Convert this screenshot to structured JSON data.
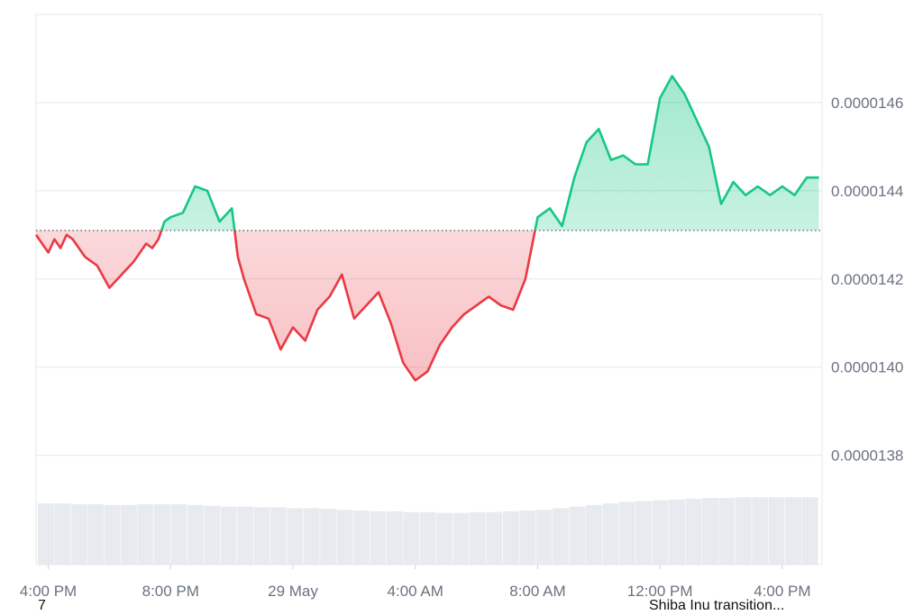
{
  "chart_data": {
    "type": "area",
    "title": "",
    "xlabel": "",
    "ylabel": "",
    "x_ticks": [
      "4:00 PM",
      "8:00 PM",
      "29 May",
      "4:00 AM",
      "8:00 AM",
      "12:00 PM",
      "4:00 PM"
    ],
    "y_ticks": [
      "0.0000146",
      "0.0000144",
      "0.0000142",
      "0.0000140",
      "0.0000138"
    ],
    "ylim": [
      1.374e-05,
      1.48e-05
    ],
    "baseline": 1.431e-05,
    "x_range_hours": [
      -0.4,
      25.3
    ],
    "grid": true,
    "colors": {
      "up": "#16c784",
      "down": "#ea3943",
      "grid": "#e5e7eb",
      "volume": "#e7eaee"
    },
    "series": [
      {
        "x": [
          -0.4,
          -0.2,
          0.0,
          0.2,
          0.4,
          0.6,
          0.8,
          1.0,
          1.2,
          1.6,
          2.0,
          2.4,
          2.8,
          3.2,
          3.4,
          3.6,
          3.8,
          4.0,
          4.4,
          4.8,
          5.2,
          5.6,
          6.0,
          6.2,
          6.4,
          6.8,
          7.2,
          7.6,
          8.0,
          8.4,
          8.8,
          9.2,
          9.6,
          10.0,
          10.4,
          10.8,
          11.2,
          11.6,
          12.0,
          12.4,
          12.8,
          13.2,
          13.6,
          14.0,
          14.4,
          14.8,
          15.2,
          15.6,
          16.0,
          16.4,
          16.8,
          17.2,
          17.6,
          18.0,
          18.4,
          18.8,
          19.2,
          19.6,
          20.0,
          20.4,
          20.8,
          21.2,
          21.6,
          22.0,
          22.4,
          22.8,
          23.2,
          23.6,
          24.0,
          24.4,
          24.8,
          25.2
        ],
        "values": [
          1.43e-05,
          1.428e-05,
          1.426e-05,
          1.429e-05,
          1.427e-05,
          1.43e-05,
          1.429e-05,
          1.427e-05,
          1.425e-05,
          1.423e-05,
          1.418e-05,
          1.421e-05,
          1.424e-05,
          1.428e-05,
          1.427e-05,
          1.429e-05,
          1.433e-05,
          1.434e-05,
          1.435e-05,
          1.441e-05,
          1.44e-05,
          1.433e-05,
          1.436e-05,
          1.425e-05,
          1.42e-05,
          1.412e-05,
          1.411e-05,
          1.404e-05,
          1.409e-05,
          1.406e-05,
          1.413e-05,
          1.416e-05,
          1.421e-05,
          1.411e-05,
          1.414e-05,
          1.417e-05,
          1.41e-05,
          1.401e-05,
          1.397e-05,
          1.399e-05,
          1.405e-05,
          1.409e-05,
          1.412e-05,
          1.414e-05,
          1.416e-05,
          1.414e-05,
          1.413e-05,
          1.42e-05,
          1.434e-05,
          1.436e-05,
          1.432e-05,
          1.443e-05,
          1.451e-05,
          1.454e-05,
          1.447e-05,
          1.448e-05,
          1.446e-05,
          1.446e-05,
          1.461e-05,
          1.466e-05,
          1.462e-05,
          1.456e-05,
          1.45e-05,
          1.437e-05,
          1.442e-05,
          1.439e-05,
          1.441e-05,
          1.439e-05,
          1.441e-05,
          1.439e-05,
          1.443e-05,
          1.443e-05
        ]
      }
    ],
    "volume": [
      78,
      78,
      77,
      77,
      76,
      76,
      77,
      77,
      77,
      76,
      75,
      74,
      74,
      73,
      73,
      72,
      72,
      71,
      70,
      69,
      68,
      68,
      67,
      67,
      66,
      66,
      67,
      67,
      68,
      69,
      70,
      72,
      74,
      76,
      78,
      80,
      81,
      82,
      83,
      84,
      85,
      85,
      86,
      86,
      86,
      86,
      86
    ]
  },
  "footer": {
    "left_text": "7",
    "right_text": "Shiba Inu transition..."
  }
}
